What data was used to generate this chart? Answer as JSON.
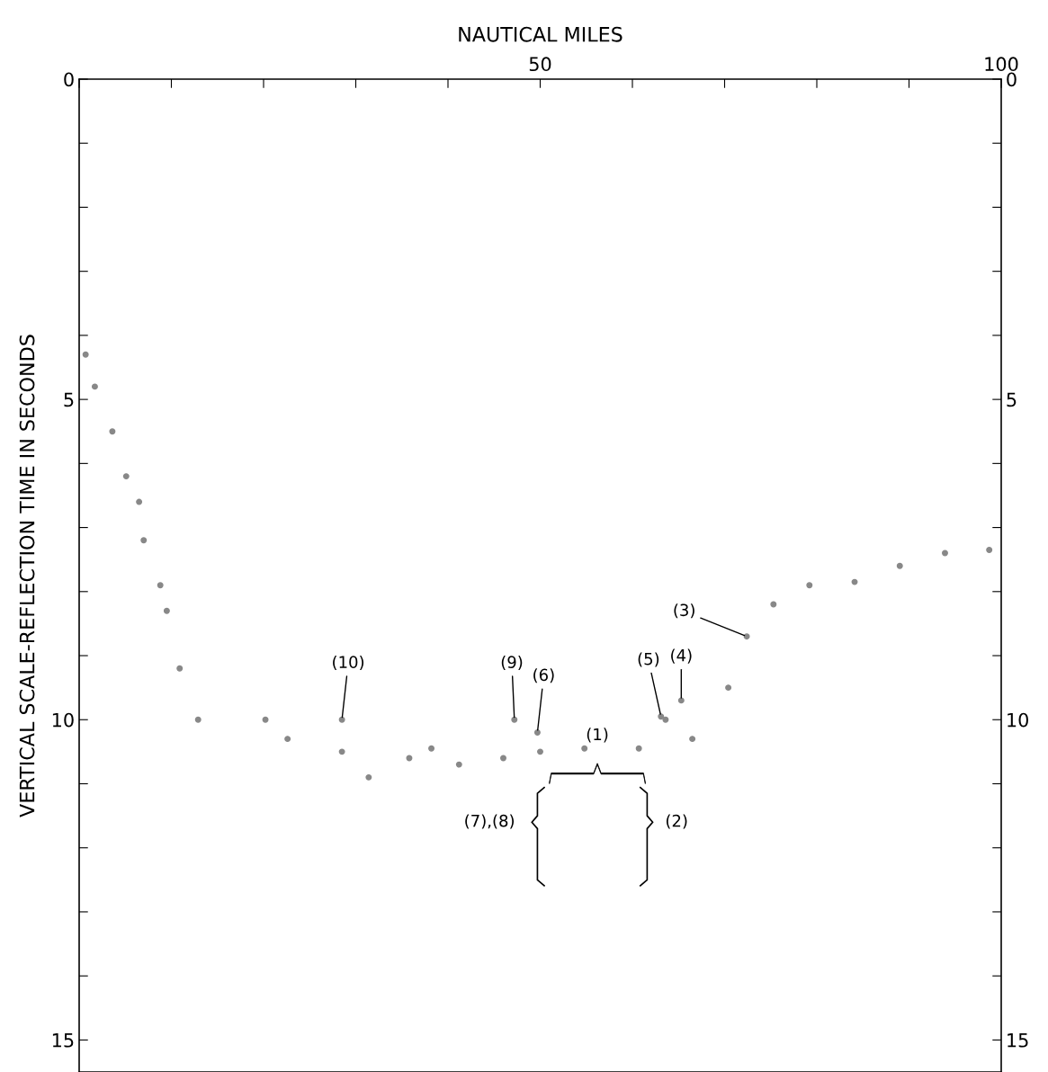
{
  "chart_data": {
    "type": "scatter",
    "xlabel": "NAUTICAL MILES",
    "ylabel": "VERTICAL SCALE-REFLECTION TIME IN SECONDS",
    "xlim": [
      0,
      100
    ],
    "xticks": [
      {
        "value": 0,
        "label": null
      },
      {
        "value": 10,
        "label": null
      },
      {
        "value": 20,
        "label": null
      },
      {
        "value": 30,
        "label": null
      },
      {
        "value": 40,
        "label": null
      },
      50,
      {
        "value": 60,
        "label": null
      },
      {
        "value": 70,
        "label": null
      },
      {
        "value": 80,
        "label": null
      },
      {
        "value": 90,
        "label": null
      },
      100
    ],
    "ylim": [
      15.5,
      0
    ],
    "yticks": [
      0,
      {
        "value": 1,
        "label": null
      },
      {
        "value": 2,
        "label": null
      },
      {
        "value": 3,
        "label": null
      },
      {
        "value": 4,
        "label": null
      },
      5,
      {
        "value": 6,
        "label": null
      },
      {
        "value": 7,
        "label": null
      },
      {
        "value": 8,
        "label": null
      },
      {
        "value": 9,
        "label": null
      },
      10,
      {
        "value": 11,
        "label": null
      },
      {
        "value": 12,
        "label": null
      },
      {
        "value": 13,
        "label": null
      },
      {
        "value": 14,
        "label": null
      },
      15
    ],
    "y2lim": [
      15.5,
      0
    ],
    "y2ticks": [
      0,
      {
        "value": 1,
        "label": null
      },
      {
        "value": 2,
        "label": null
      },
      {
        "value": 3,
        "label": null
      },
      {
        "value": 4,
        "label": null
      },
      5,
      {
        "value": 6,
        "label": null
      },
      {
        "value": 7,
        "label": null
      },
      {
        "value": 8,
        "label": null
      },
      {
        "value": 9,
        "label": null
      },
      10,
      {
        "value": 11,
        "label": null
      },
      {
        "value": 12,
        "label": null
      },
      {
        "value": 13,
        "label": null
      },
      {
        "value": 14,
        "label": null
      },
      15
    ],
    "marker": "circle",
    "grid": false,
    "legend": false,
    "series": [
      {
        "color": "#888888",
        "x": [
          0.7,
          1.7,
          3.6,
          5.1,
          6.5,
          7.0,
          8.8,
          9.5,
          10.9,
          12.9,
          20.2,
          22.6,
          28.5,
          28.5,
          31.4,
          35.8,
          38.2,
          41.2,
          46,
          47.2,
          49.7,
          50,
          54.8,
          60.7,
          63.1,
          63.6,
          65.3,
          66.5,
          70.4,
          72.4,
          75.3,
          79.2,
          84.1,
          89,
          93.9,
          98.7
        ],
        "values": [
          4.3,
          4.8,
          5.5,
          6.2,
          6.6,
          7.2,
          7.9,
          8.3,
          9.2,
          10.0,
          10.0,
          10.3,
          10.0,
          10.5,
          10.9,
          10.6,
          10.45,
          10.7,
          10.6,
          10.0,
          10.2,
          10.5,
          10.45,
          10.45,
          9.95,
          10.0,
          9.7,
          10.3,
          9.5,
          8.7,
          8.2,
          7.9,
          7.85,
          7.6,
          7.4,
          7.35
        ]
      }
    ],
    "annotations": [
      {
        "text": "(10)",
        "x": 28.5,
        "y": 10.0
      },
      {
        "text": "(9)",
        "x": 47.2,
        "y": 10.0
      },
      {
        "text": "(6)",
        "x": 49.7,
        "y": 10.2
      },
      {
        "text": "(5)",
        "x": 63.1,
        "y": 9.95
      },
      {
        "text": "(4)",
        "x": 65.3,
        "y": 9.7
      },
      {
        "text": "(3)",
        "x": 72.4,
        "y": 8.7
      },
      "(1)",
      "(2)",
      "(7),(8)"
    ]
  }
}
